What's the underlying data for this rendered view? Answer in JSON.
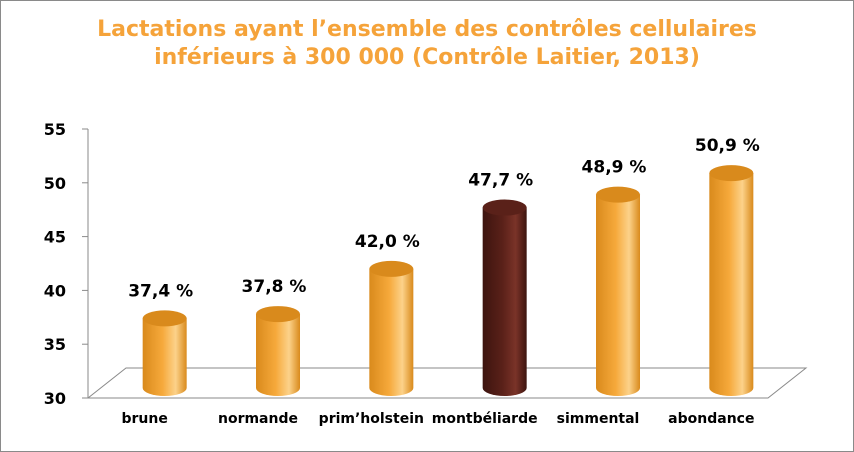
{
  "chart_data": {
    "type": "bar",
    "title_line1": "Lactations ayant l’ensemble des contrôles cellulaires",
    "title_line2": "inférieurs à 300 000 (Contrôle Laitier, 2013)",
    "categories": [
      "brune",
      "normande",
      "prim’holstein",
      "montbéliarde",
      "simmental",
      "abondance"
    ],
    "values": [
      37.4,
      37.8,
      42.0,
      47.7,
      48.9,
      50.9
    ],
    "value_labels": [
      "37,4 %",
      "37,8 %",
      "42,0 %",
      "47,7 %",
      "48,9 %",
      "50,9 %"
    ],
    "y_ticks": [
      "30",
      "35",
      "40",
      "45",
      "50",
      "55"
    ],
    "ylim": [
      30,
      55
    ],
    "highlight_index": 3,
    "colors": {
      "bar": "#f6a93b",
      "bar_dark": "#d98a1c",
      "bar_light": "#fcd28a",
      "highlight": "#5a2119",
      "highlight_dark": "#3d140f",
      "highlight_light": "#7a3328",
      "title": "#f5a33a"
    }
  }
}
